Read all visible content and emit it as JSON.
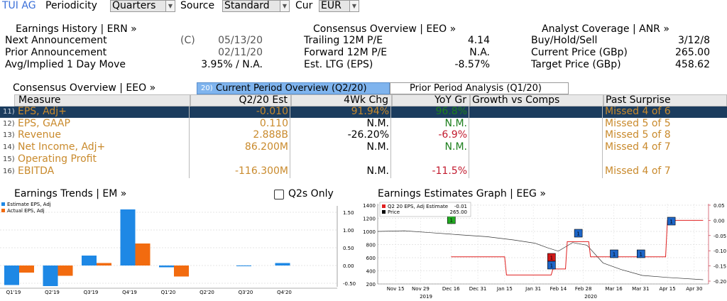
{
  "toolbar": {
    "ticker": "TUI AG",
    "periodicity_label": "Periodicity",
    "periodicity_value": "Quarters",
    "source_label": "Source",
    "source_value": "Standard",
    "cur_label": "Cur",
    "cur_value": "EUR"
  },
  "earnings_history": {
    "title": "Earnings History | ERN »",
    "rows": [
      {
        "label": "Next Announcement",
        "flag": "(C)",
        "value": "05/13/20"
      },
      {
        "label": "Prior Announcement",
        "flag": "",
        "value": "02/11/20"
      },
      {
        "label": "Avg/Implied 1 Day Move",
        "flag": "",
        "value": "3.95% / N.A."
      }
    ]
  },
  "consensus_top": {
    "title": "Consensus Overview | EEO »",
    "rows": [
      {
        "label": "Trailing 12M P/E",
        "value": "4.14"
      },
      {
        "label": "Forward 12M P/E",
        "value": "N.A."
      },
      {
        "label": "Est. LTG (EPS)",
        "value": "-8.57%"
      }
    ]
  },
  "analyst": {
    "title": "Analyst Coverage | ANR »",
    "rows": [
      {
        "label": "Buy/Hold/Sell",
        "value": "3/12/8"
      },
      {
        "label": "Current Price (GBp)",
        "value": "265.00"
      },
      {
        "label": "Target Price (GBp)",
        "value": "458.62"
      }
    ]
  },
  "consensus_table": {
    "title": "Consensus Overview | EEO »",
    "tab_num": "20)",
    "tab_active": "Current Period Overview (Q2/20)",
    "tab_inactive": "Prior Period Analysis (Q1/20)",
    "headers": [
      "Measure",
      "Q2/20 Est",
      "4Wk Chg",
      "YoY Gr",
      "Growth vs Comps",
      "Past Surprise"
    ],
    "rows": [
      {
        "num": "11)",
        "measure": "EPS, Adj+",
        "est": "-0.010",
        "chg": "91.94%",
        "yoy": "96.8%",
        "comps": "",
        "surprise": "Missed 4 of 6"
      },
      {
        "num": "12)",
        "measure": "EPS, GAAP",
        "est": "0.110",
        "chg": "N.M.",
        "yoy": "N.M.",
        "comps": "",
        "surprise": "Missed 5 of 5"
      },
      {
        "num": "13)",
        "measure": "Revenue",
        "est": "2.888B",
        "chg": "-26.20%",
        "yoy": "-6.9%",
        "comps": "",
        "surprise": "Missed 5 of 8"
      },
      {
        "num": "14)",
        "measure": "Net Income, Adj+",
        "est": "86.200M",
        "chg": "N.M.",
        "yoy": "N.M.",
        "comps": "",
        "surprise": "Missed 4 of 7"
      },
      {
        "num": "15)",
        "measure": "Operating Profit",
        "est": "",
        "chg": "",
        "yoy": "",
        "comps": "",
        "surprise": ""
      },
      {
        "num": "16)",
        "measure": "EBITDA",
        "est": "-116.300M",
        "chg": "N.M.",
        "yoy": "-11.5%",
        "comps": "",
        "surprise": "Missed 4 of 7"
      }
    ]
  },
  "earnings_trends": {
    "title": "Earnings Trends | EM »",
    "checkbox_label": "Q2s Only",
    "legend": [
      "Estimate EPS, Adj",
      "Actual EPS, Adj"
    ]
  },
  "earnings_graph": {
    "title": "Earnings Estimates Graph | EEG »",
    "legend": [
      {
        "label": "Q2 20 EPS, Adj Estimate",
        "value": "-0.01"
      },
      {
        "label": "Price",
        "value": "265.00"
      }
    ],
    "years": [
      "2019",
      "2020"
    ]
  },
  "colors": {
    "estimate_bar": "#1e88e5",
    "actual_bar": "#f26b0f",
    "selected_row": "#1b3c5e",
    "estimate_line": "#e02020"
  },
  "chart_data": [
    {
      "type": "bar",
      "title": "Earnings Trends",
      "categories": [
        "Q1'19",
        "Q2'19",
        "Q3'19",
        "Q4'19",
        "Q1'20",
        "Q2'20",
        "Q3'20",
        "Q4'20"
      ],
      "series": [
        {
          "name": "Estimate EPS, Adj",
          "values": [
            -0.55,
            -0.58,
            0.28,
            1.58,
            -0.05,
            null,
            -0.02,
            0.07
          ]
        },
        {
          "name": "Actual EPS, Adj",
          "values": [
            -0.2,
            -0.29,
            0.07,
            0.62,
            -0.31,
            null,
            null,
            null
          ]
        }
      ],
      "ylim": [
        -0.5,
        1.5
      ],
      "yticks": [
        "1.50",
        "1.00",
        "0.50",
        "0.00",
        "-0.50"
      ],
      "legend_position": "top-left"
    },
    {
      "type": "line",
      "title": "Earnings Estimates Graph",
      "x_ticks": [
        "Nov 15",
        "Nov 29",
        "Dec 16",
        "Dec 31",
        "Jan 15",
        "Jan 31",
        "Feb 14",
        "Feb 28",
        "Mar 16",
        "Mar 31",
        "Apr 15",
        "Apr 30"
      ],
      "left_yticks": [
        "1400",
        "1200",
        "1000",
        "800",
        "600",
        "400",
        "200"
      ],
      "right_yticks": [
        "0.05",
        "0.00",
        "-0.05",
        "-0.10",
        "-0.15",
        "-0.20"
      ],
      "left_ylim": [
        200,
        1400
      ],
      "right_ylim": [
        -0.2,
        0.05
      ],
      "series": [
        {
          "name": "Q2 20 EPS, Adj Estimate",
          "axis": "right",
          "x": [
            "Dec 16",
            "Jan 15",
            "Jan 16",
            "Feb 10",
            "Feb 11",
            "Feb 18",
            "Feb 19",
            "Mar 2",
            "Mar 3",
            "Apr 14",
            "Apr 15",
            "May 5"
          ],
          "values": [
            -0.12,
            -0.12,
            -0.18,
            -0.18,
            -0.16,
            -0.16,
            -0.07,
            -0.07,
            -0.12,
            -0.12,
            0.0,
            0.0
          ]
        },
        {
          "name": "Price",
          "axis": "left",
          "x": [
            "Nov 5",
            "Nov 20",
            "Dec 5",
            "Dec 20",
            "Jan 5",
            "Jan 20",
            "Feb 1",
            "Feb 8",
            "Feb 14",
            "Feb 22",
            "Mar 1",
            "Mar 10",
            "Mar 20",
            "Apr 1",
            "Apr 15",
            "May 5"
          ],
          "values": [
            1000,
            1010,
            980,
            950,
            920,
            870,
            820,
            750,
            700,
            830,
            790,
            520,
            420,
            330,
            300,
            265
          ]
        }
      ],
      "markers": [
        {
          "x": "Dec 16",
          "color": "green",
          "label": "1"
        },
        {
          "x": "Feb 10",
          "color": "red",
          "label": "1"
        },
        {
          "x": "Feb 10",
          "color": "blue",
          "label": "1"
        },
        {
          "x": "Feb 25",
          "color": "blue",
          "label": "1"
        },
        {
          "x": "Mar 16",
          "color": "blue",
          "label": "1"
        },
        {
          "x": "Mar 31",
          "color": "blue",
          "label": "1"
        },
        {
          "x": "Apr 17",
          "color": "blue",
          "label": "1"
        }
      ],
      "grid": true
    }
  ]
}
